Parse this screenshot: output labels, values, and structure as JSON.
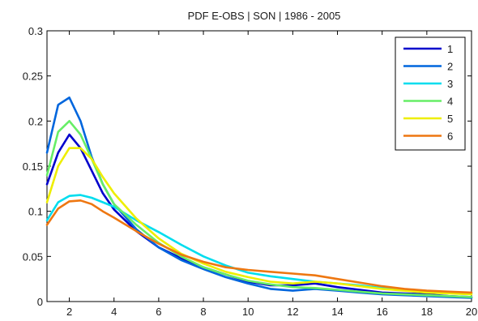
{
  "chart_data": {
    "type": "line",
    "title": "PDF E-OBS | SON | 1986 - 2005",
    "xlabel": "",
    "ylabel": "",
    "xlim": [
      1,
      20
    ],
    "ylim": [
      0,
      0.3
    ],
    "xticks": [
      2,
      4,
      6,
      8,
      10,
      12,
      14,
      16,
      18,
      20
    ],
    "yticks": [
      0,
      0.05,
      0.1,
      0.15,
      0.2,
      0.25,
      0.3
    ],
    "grid": false,
    "legend_position": "top-right",
    "series": [
      {
        "name": "1",
        "color": "#0000cc",
        "x": [
          1,
          1.5,
          2,
          2.5,
          3,
          3.5,
          4,
          5,
          6,
          7,
          8,
          9,
          10,
          11,
          12,
          13,
          14,
          15,
          16,
          17,
          18,
          19,
          20
        ],
        "y": [
          0.13,
          0.165,
          0.185,
          0.17,
          0.145,
          0.12,
          0.102,
          0.078,
          0.06,
          0.048,
          0.038,
          0.03,
          0.022,
          0.018,
          0.018,
          0.02,
          0.016,
          0.013,
          0.01,
          0.009,
          0.008,
          0.006,
          0.005
        ]
      },
      {
        "name": "2",
        "color": "#0066dd",
        "x": [
          1,
          1.5,
          2,
          2.5,
          3,
          3.5,
          4,
          5,
          6,
          7,
          8,
          9,
          10,
          11,
          12,
          13,
          14,
          15,
          16,
          17,
          18,
          19,
          20
        ],
        "y": [
          0.165,
          0.218,
          0.226,
          0.2,
          0.16,
          0.13,
          0.108,
          0.08,
          0.06,
          0.046,
          0.036,
          0.027,
          0.02,
          0.014,
          0.012,
          0.014,
          0.012,
          0.01,
          0.008,
          0.007,
          0.006,
          0.005,
          0.004
        ]
      },
      {
        "name": "3",
        "color": "#00ddee",
        "x": [
          1,
          1.5,
          2,
          2.5,
          3,
          3.5,
          4,
          5,
          6,
          7,
          8,
          9,
          10,
          11,
          12,
          13,
          14,
          15,
          16,
          17,
          18,
          19,
          20
        ],
        "y": [
          0.09,
          0.11,
          0.117,
          0.118,
          0.115,
          0.11,
          0.105,
          0.09,
          0.077,
          0.063,
          0.05,
          0.04,
          0.032,
          0.028,
          0.025,
          0.022,
          0.02,
          0.018,
          0.015,
          0.013,
          0.011,
          0.01,
          0.009
        ]
      },
      {
        "name": "4",
        "color": "#66ee66",
        "x": [
          1,
          1.5,
          2,
          2.5,
          3,
          3.5,
          4,
          5,
          6,
          7,
          8,
          9,
          10,
          11,
          12,
          13,
          14,
          15,
          16,
          17,
          18,
          19,
          20
        ],
        "y": [
          0.14,
          0.188,
          0.2,
          0.185,
          0.158,
          0.13,
          0.108,
          0.085,
          0.065,
          0.05,
          0.038,
          0.03,
          0.023,
          0.019,
          0.016,
          0.015,
          0.013,
          0.011,
          0.009,
          0.008,
          0.007,
          0.006,
          0.005
        ]
      },
      {
        "name": "5",
        "color": "#eeee00",
        "x": [
          1,
          1.5,
          2,
          2.5,
          3,
          3.5,
          4,
          5,
          6,
          7,
          8,
          9,
          10,
          11,
          12,
          13,
          14,
          15,
          16,
          17,
          18,
          19,
          20
        ],
        "y": [
          0.11,
          0.15,
          0.17,
          0.17,
          0.158,
          0.138,
          0.12,
          0.092,
          0.07,
          0.053,
          0.042,
          0.033,
          0.027,
          0.022,
          0.02,
          0.022,
          0.02,
          0.017,
          0.014,
          0.012,
          0.01,
          0.009,
          0.008
        ]
      },
      {
        "name": "6",
        "color": "#ee7711",
        "x": [
          1,
          1.5,
          2,
          2.5,
          3,
          3.5,
          4,
          5,
          6,
          7,
          8,
          9,
          10,
          11,
          12,
          13,
          14,
          15,
          16,
          17,
          18,
          19,
          20
        ],
        "y": [
          0.085,
          0.103,
          0.111,
          0.112,
          0.108,
          0.1,
          0.093,
          0.078,
          0.064,
          0.052,
          0.044,
          0.038,
          0.035,
          0.033,
          0.031,
          0.029,
          0.025,
          0.021,
          0.017,
          0.014,
          0.012,
          0.011,
          0.01
        ]
      }
    ]
  }
}
